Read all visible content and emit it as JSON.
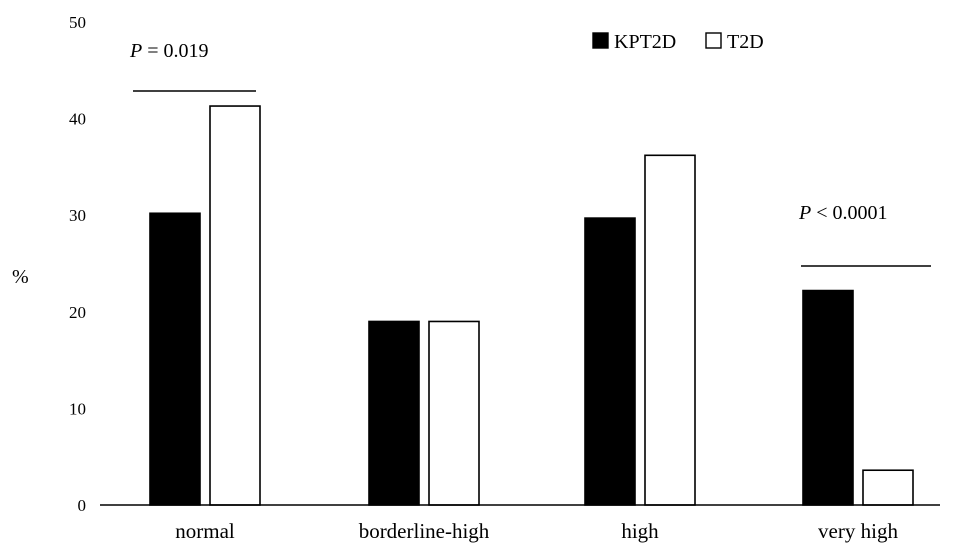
{
  "chart_data": {
    "type": "bar",
    "categories": [
      "normal",
      "borderline-high",
      "high",
      "very high"
    ],
    "series": [
      {
        "name": "KPT2D",
        "values": [
          30.2,
          19.0,
          29.7,
          22.2
        ],
        "color": "#000000"
      },
      {
        "name": "T2D",
        "values": [
          41.3,
          19.0,
          36.2,
          3.6
        ],
        "color": "#ffffff"
      }
    ],
    "ylabel": "%",
    "ylim": [
      0,
      50
    ],
    "yticks": [
      "0",
      "10",
      "20",
      "30",
      "40",
      "50"
    ],
    "legend": {
      "placement": "top-right"
    },
    "grid": false,
    "annotations": [
      {
        "category": "normal",
        "p_italic": "P",
        "text": " = 0.019"
      },
      {
        "category": "very high",
        "p_italic": "P",
        "text": " < 0.0001"
      }
    ]
  }
}
